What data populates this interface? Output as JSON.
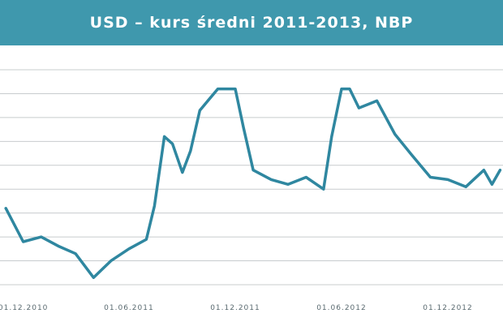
{
  "header": {
    "title": "USD – kurs średni 2011-2013, NBP"
  },
  "colors": {
    "title_bg": "#3f98ad",
    "line": "#2f87a0",
    "grid": "#c8ccce"
  },
  "chart_data": {
    "type": "line",
    "title": "USD – kurs średni 2011-2013, NBP",
    "xlabel": "",
    "ylabel": "",
    "grid": true,
    "legend": "none",
    "x_ticks": [
      "01.12.2010",
      "01.06.2011",
      "01.12.2011",
      "01.06.2012",
      "01.12.2012"
    ],
    "x": [
      "2010-11-01",
      "2010-12-01",
      "2011-01-01",
      "2011-02-01",
      "2011-03-01",
      "2011-04-01",
      "2011-05-01",
      "2011-06-01",
      "2011-07-01",
      "2011-07-15",
      "2011-08-01",
      "2011-08-15",
      "2011-09-01",
      "2011-09-15",
      "2011-10-01",
      "2011-11-01",
      "2011-12-01",
      "2011-12-15",
      "2012-01-01",
      "2012-02-01",
      "2012-03-01",
      "2012-04-01",
      "2012-05-01",
      "2012-05-15",
      "2012-06-01",
      "2012-06-15",
      "2012-07-01",
      "2012-08-01",
      "2012-09-01",
      "2012-10-01",
      "2012-11-01",
      "2012-12-01",
      "2013-01-01",
      "2013-02-01",
      "2013-02-15",
      "2013-03-01"
    ],
    "values": [
      3.02,
      2.88,
      2.9,
      2.86,
      2.83,
      2.73,
      2.8,
      2.85,
      2.89,
      3.03,
      3.32,
      3.29,
      3.17,
      3.26,
      3.43,
      3.52,
      3.52,
      3.36,
      3.18,
      3.14,
      3.12,
      3.15,
      3.1,
      3.32,
      3.52,
      3.52,
      3.44,
      3.47,
      3.33,
      3.24,
      3.15,
      3.14,
      3.11,
      3.18,
      3.12,
      3.18
    ],
    "ylim": [
      2.7,
      3.6
    ]
  }
}
